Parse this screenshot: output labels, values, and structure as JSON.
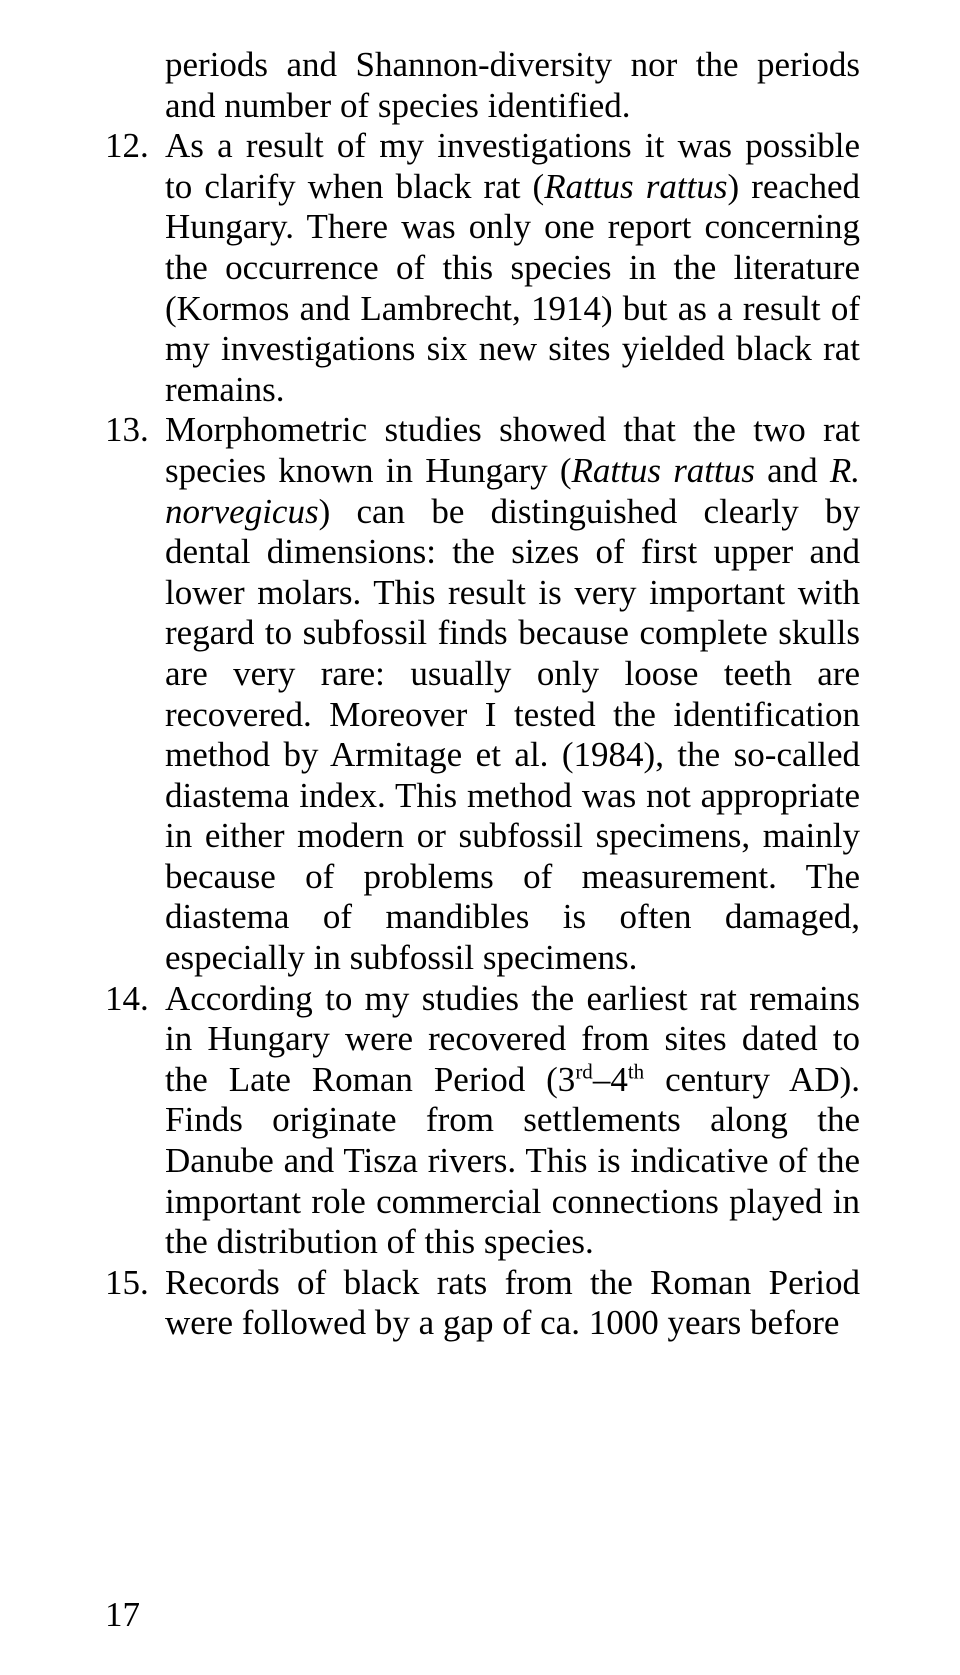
{
  "page_number": "17",
  "items": [
    {
      "num": "",
      "text_html": "periods and Shannon-diversity nor the periods and number of species identified."
    },
    {
      "num": "12.",
      "text_html": "As a result of my investigations it was possible to clarify when black rat (<span class=\"it\">Rattus rattus</span>) reached Hungary. There was only one report concerning the occurrence of this species in the literature (Kormos and Lambrecht, 1914) but as a result of my investigations six new sites yielded black rat remains."
    },
    {
      "num": "13.",
      "text_html": "Morphometric studies showed that the two rat species known in Hungary (<span class=\"it\">Rattus rattus</span> and <span class=\"it\">R. norvegicus</span>) can be distinguished clearly by dental dimensions: the sizes of first upper and lower molars. This result is very important with regard to subfossil finds because complete skulls are very rare: usually only loose teeth are recovered. Moreover I tested the identification method by Armitage et al. (1984), the so-called diastema index. This method was not appropriate in either modern or subfossil specimens, mainly because of problems of measurement. The diastema of mandibles is often damaged, especially in subfossil specimens."
    },
    {
      "num": "14.",
      "text_html": "According to my studies the earliest rat remains in Hungary were recovered from sites dated to the Late Roman Period (3<sup>rd</sup>–4<sup>th</sup> century AD). Finds originate from settlements along the Danube and Tisza rivers. This is indicative of the important role commercial connections played in the distribution of this species."
    },
    {
      "num": "15.",
      "text_html": "Records of black rats from the Roman Period were followed by a gap of ca. 1000 years before"
    }
  ]
}
